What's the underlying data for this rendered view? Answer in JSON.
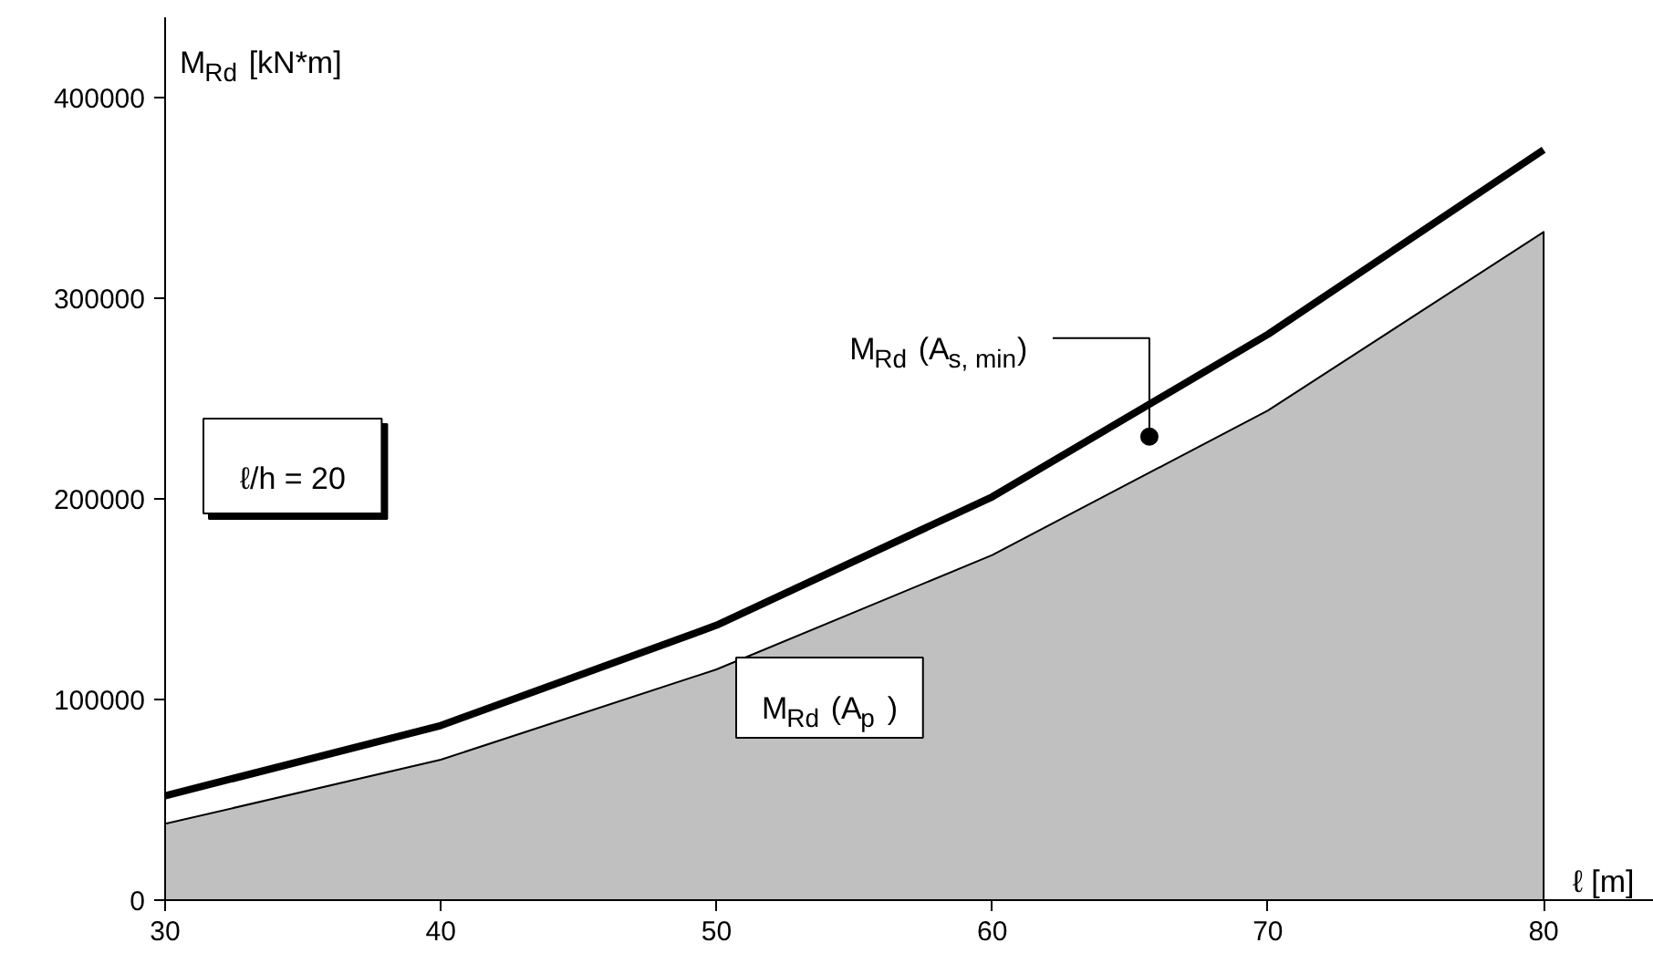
{
  "chart_data": {
    "type": "line",
    "xlabel": "ℓ [m]",
    "ylabel": "M$_{Rd}$ [kN*m]",
    "x": [
      30,
      40,
      50,
      60,
      70,
      80
    ],
    "series": [
      {
        "type": "area",
        "color": "#c0c0c0",
        "values": [
          38000,
          70000,
          115000,
          172000,
          244000,
          333000
        ]
      },
      {
        "color": "#000000",
        "values": [
          52000,
          87000,
          137000,
          201000,
          282000,
          374000
        ]
      }
    ],
    "xlim": [
      30,
      84
    ],
    "ylim": [
      0,
      440000
    ],
    "xticks": [
      30,
      40,
      50,
      60,
      70,
      80
    ],
    "yticks": [
      0,
      100000,
      200000,
      300000,
      400000
    ],
    "grid": false,
    "annotations": [
      {
        "text": "M$_{Rd}$ (A$_{s, min}$)",
        "x": 65.7,
        "y": 231000
      },
      "M$_{Rd}$ (A$_{p}$ )",
      "ℓ/h = 20"
    ]
  }
}
